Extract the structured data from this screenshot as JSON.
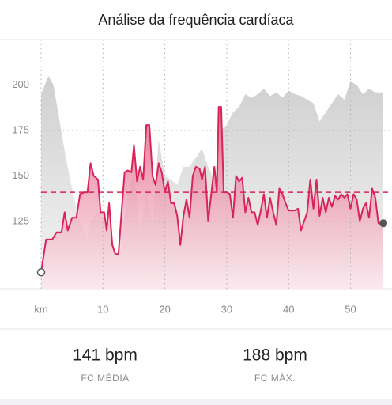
{
  "chart_data": {
    "type": "line",
    "title": "Análise da frequência cardíaca",
    "xlim": [
      0,
      56.7
    ],
    "ylim": [
      88,
      225
    ],
    "xticks": [
      {
        "value": 0,
        "label": "km"
      },
      10,
      20,
      30,
      40,
      50
    ],
    "yticks": [
      125,
      150,
      175,
      200
    ],
    "grid": true,
    "average": 141,
    "series": [
      {
        "color": "#d4d4d4",
        "kind": "area",
        "x": [
          0,
          1.2,
          2,
          3,
          4,
          5,
          6,
          7,
          7.5,
          8,
          9,
          10,
          10.5,
          11,
          12,
          13,
          14,
          15,
          16,
          17,
          18,
          19,
          20,
          21,
          22,
          23,
          24,
          25,
          26,
          27,
          28,
          29,
          30,
          31,
          32,
          33,
          34,
          35,
          36,
          37,
          38,
          39,
          40,
          41,
          42,
          43,
          44,
          45,
          46,
          47,
          48,
          49,
          50,
          51,
          52,
          53,
          54,
          55.3
        ],
        "values": [
          195,
          205,
          200,
          180,
          160,
          143,
          128,
          118,
          115,
          125,
          130,
          125,
          120,
          125,
          108,
          110,
          140,
          150,
          120,
          140,
          125,
          170,
          150,
          148,
          145,
          155,
          155,
          160,
          165,
          155,
          148,
          175,
          178,
          185,
          188,
          195,
          193,
          195,
          198,
          194,
          196,
          193,
          197,
          195,
          194,
          192,
          190,
          180,
          185,
          190,
          195,
          192,
          202,
          200,
          195,
          198,
          196,
          196
        ]
      },
      {
        "color": "#d9245a",
        "kind": "line",
        "x": [
          0,
          0.8,
          1.8,
          2.5,
          3.3,
          3.8,
          4.3,
          5,
          5.7,
          6.3,
          7,
          7.5,
          8,
          8.5,
          9.2,
          9.6,
          10.2,
          10.6,
          11,
          11.5,
          12,
          12.5,
          13,
          13.5,
          14,
          14.6,
          15,
          15.5,
          16,
          16.5,
          17,
          17.5,
          18,
          18.5,
          19,
          19.5,
          20,
          20.5,
          21,
          21.5,
          22,
          22.5,
          23,
          23.5,
          24,
          24.5,
          25,
          25.6,
          26,
          26.5,
          27,
          27.5,
          28,
          28.4,
          28.7,
          29.1,
          29.5,
          30,
          30.5,
          31,
          31.5,
          32,
          32.5,
          33,
          33.5,
          34,
          34.5,
          35,
          35.5,
          36,
          36.5,
          37,
          37.5,
          38,
          38.5,
          39,
          39.5,
          40,
          40.5,
          41,
          41.5,
          42,
          42.5,
          43,
          43.5,
          44,
          44.5,
          45,
          45.5,
          46,
          46.5,
          47,
          47.5,
          48,
          48.5,
          49,
          49.5,
          50,
          50.5,
          51,
          51.5,
          52,
          52.5,
          53,
          53.5,
          54,
          54.5,
          55.3
        ],
        "values": [
          97,
          115,
          115,
          119,
          119,
          130,
          120,
          127,
          127,
          140,
          141,
          141,
          157,
          150,
          148,
          130,
          130,
          120,
          135,
          112,
          107,
          107,
          130,
          152,
          153,
          152,
          167,
          147,
          155,
          148,
          178,
          178,
          150,
          145,
          157,
          152,
          141,
          147,
          135,
          135,
          128,
          112,
          128,
          137,
          127,
          150,
          155,
          154,
          148,
          155,
          125,
          140,
          155,
          141,
          188,
          188,
          141,
          141,
          140,
          127,
          150,
          147,
          149,
          130,
          138,
          130,
          130,
          123,
          131,
          140,
          127,
          138,
          130,
          123,
          143,
          140,
          135,
          131,
          131,
          131,
          132,
          120,
          125,
          130,
          148,
          132,
          148,
          128,
          138,
          130,
          138,
          133,
          139,
          137,
          140,
          138,
          140,
          132,
          140,
          137,
          125,
          132,
          135,
          127,
          143,
          138,
          124,
          124
        ]
      }
    ]
  },
  "summary": [
    {
      "value": 141,
      "label": "141 bpm",
      "caption": "FC MÉDIA"
    },
    {
      "value": 188,
      "label": "188 bpm",
      "caption": "FC MÁX."
    }
  ]
}
